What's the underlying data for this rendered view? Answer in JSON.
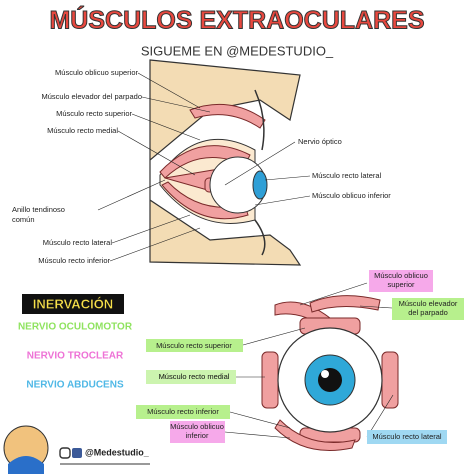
{
  "header": {
    "title": "MÚSCULOS EXTRAOCULARES",
    "subtitle": "SIGUEME EN @MEDESTUDIO_"
  },
  "lateral_view": {
    "left_labels": [
      [
        "Músculo oblicuo superior"
      ],
      [
        "Músculo elevador del parpado"
      ],
      [
        "Músculo recto superior"
      ],
      [
        "Músculo recto medial"
      ],
      [
        "Anillo tendinoso",
        "común"
      ],
      [
        "Músculo recto lateral"
      ],
      [
        "Músculo recto inferior"
      ]
    ],
    "right_labels": [
      [
        "Nervio óptico"
      ],
      [
        "Músculo recto lateral"
      ],
      [
        "Músculo oblicuo inferior"
      ]
    ]
  },
  "innervation": {
    "title": "INERVACIÓN",
    "items": [
      "NERVIO OCULOMOTOR",
      "NERVIO TROCLEAR",
      "NERVIO ABDUCENS"
    ]
  },
  "front_view": {
    "labels": [
      [
        "Músculo oblicuo",
        "superior"
      ],
      [
        "Músculo elevador",
        "del parpado"
      ],
      [
        "Músculo recto superior"
      ],
      [
        "Músculo recto medial"
      ],
      [
        "Músculo recto inferior"
      ],
      [
        "Músculo oblicuo",
        "inferior"
      ],
      [
        "Músculo recto lateral"
      ]
    ]
  },
  "footer": {
    "handle": "@Medestudio_"
  }
}
